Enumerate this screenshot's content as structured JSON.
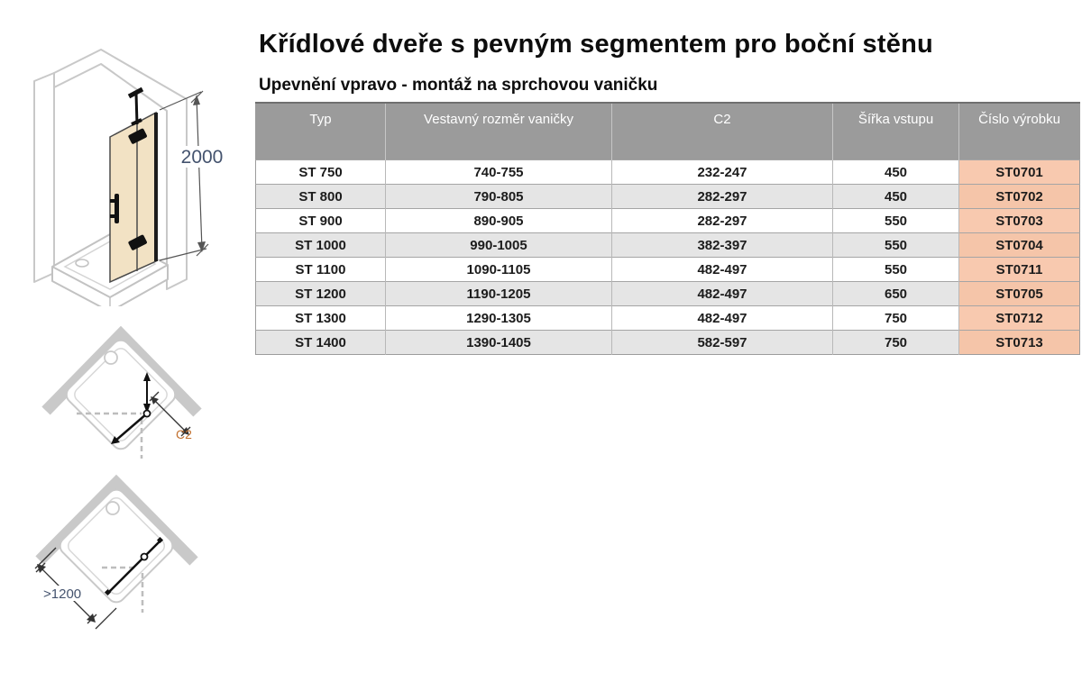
{
  "header": {
    "title": "Křídlové dveře s pevným segmentem pro boční stěnu",
    "subtitle": "Upevnění vpravo - montáž na sprchovou vaničku"
  },
  "table": {
    "columns": [
      "Typ",
      "Vestavný rozměr vaničky",
      "C2",
      "Šířka vstupu",
      "Číslo výrobku"
    ],
    "rows": [
      [
        "ST 750",
        "740-755",
        "232-247",
        "450",
        "ST0701"
      ],
      [
        "ST 800",
        "790-805",
        "282-297",
        "450",
        "ST0702"
      ],
      [
        "ST 900",
        "890-905",
        "282-297",
        "550",
        "ST0703"
      ],
      [
        "ST 1000",
        "990-1005",
        "382-397",
        "550",
        "ST0704"
      ],
      [
        "ST 1100",
        "1090-1105",
        "482-497",
        "550",
        "ST0711"
      ],
      [
        "ST 1200",
        "1190-1205",
        "482-497",
        "650",
        "ST0705"
      ],
      [
        "ST 1300",
        "1290-1305",
        "482-497",
        "750",
        "ST0712"
      ],
      [
        "ST 1400",
        "1390-1405",
        "582-597",
        "750",
        "ST0713"
      ]
    ]
  },
  "diagrams": {
    "elevation": {
      "height_label": "2000"
    },
    "plan_c2": {
      "dimension_label": "C2"
    },
    "plan_min_width": {
      "dimension_label": ">1200"
    }
  },
  "colors": {
    "header_bg": "#9b9b9b",
    "row_alt_bg": "#e5e5e5",
    "product_col_bg": "#f8c9af",
    "product_col_alt_bg": "#f5c5a9",
    "glass_fill": "#f2e2c4",
    "dimension_text": "#44536e",
    "c2_text": "#c2702e"
  }
}
